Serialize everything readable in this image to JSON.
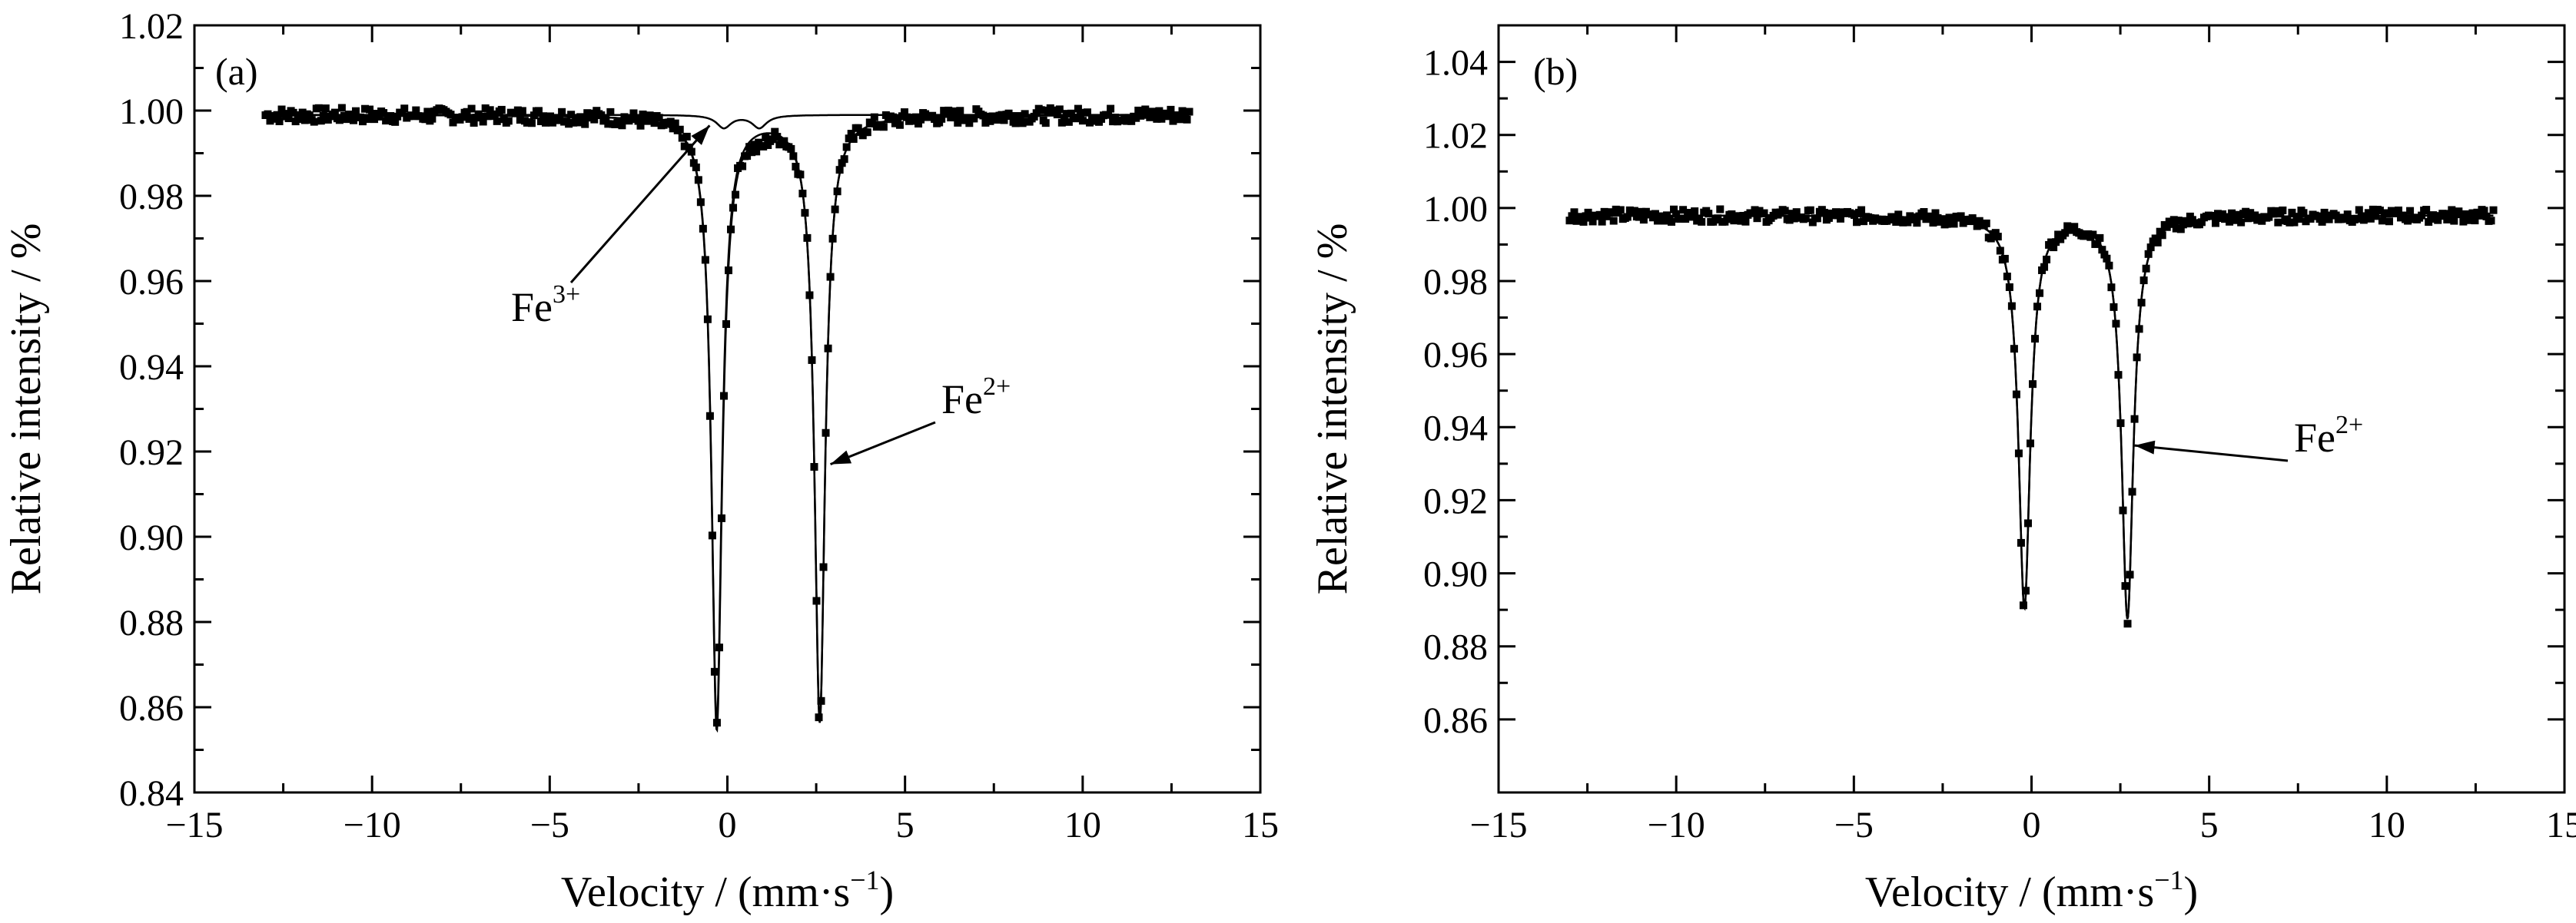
{
  "chart_data": [
    {
      "type": "scatter",
      "panel_label": "(a)",
      "xlabel": "Velocity / (mm·s",
      "xlabel_sup": "−1",
      "xlabel_end": ")",
      "ylabel": "Relative intensity / %",
      "xlim": [
        -15,
        15
      ],
      "ylim": [
        0.84,
        1.02
      ],
      "xticks": [
        -15,
        -10,
        -5,
        0,
        5,
        10,
        15
      ],
      "xtick_labels": [
        "−15",
        "−10",
        "−5",
        "0",
        "5",
        "10",
        "15"
      ],
      "yticks": [
        0.84,
        0.86,
        0.88,
        0.9,
        0.92,
        0.94,
        0.96,
        0.98,
        1.0,
        1.02
      ],
      "ytick_labels": [
        "0.84",
        "0.86",
        "0.88",
        "0.90",
        "0.92",
        "0.94",
        "0.96",
        "0.98",
        "1.00",
        "1.02"
      ],
      "x_range_data": [
        -13,
        13
      ],
      "baseline": 0.999,
      "components": [
        {
          "name": "Fe2+",
          "peaks": [
            {
              "center": -0.3,
              "depth": 0.142,
              "hwhm": 0.18
            },
            {
              "center": 2.6,
              "depth": 0.142,
              "hwhm": 0.18
            }
          ]
        },
        {
          "name": "Fe3+",
          "peaks": [
            {
              "center": -0.1,
              "depth": 0.003,
              "hwhm": 0.25
            },
            {
              "center": 0.9,
              "depth": 0.003,
              "hwhm": 0.25
            }
          ]
        }
      ],
      "annotations": [
        {
          "base": "Fe",
          "sup": "3+",
          "target": {
            "x": -0.5,
            "y": 0.9965
          }
        },
        {
          "base": "Fe",
          "sup": "2+",
          "target": {
            "x": 2.9,
            "y": 0.917
          }
        }
      ]
    },
    {
      "type": "scatter",
      "panel_label": "(b)",
      "xlabel": "Velocity / (mm·s",
      "xlabel_sup": "−1",
      "xlabel_end": ")",
      "ylabel": "Relative intensity / %",
      "xlim": [
        -15,
        15
      ],
      "ylim": [
        0.84,
        1.05
      ],
      "xticks": [
        -15,
        -10,
        -5,
        0,
        5,
        10,
        15
      ],
      "xtick_labels": [
        "−15",
        "−10",
        "−5",
        "0",
        "5",
        "10",
        "15"
      ],
      "yticks": [
        0.86,
        0.88,
        0.9,
        0.92,
        0.94,
        0.96,
        0.98,
        1.0,
        1.02,
        1.04
      ],
      "ytick_labels": [
        "0.86",
        "0.88",
        "0.90",
        "0.92",
        "0.94",
        "0.96",
        "0.98",
        "1.00",
        "1.02",
        "1.04"
      ],
      "x_range_data": [
        -13,
        13
      ],
      "baseline": 0.998,
      "components": [
        {
          "name": "Fe2+",
          "peaks": [
            {
              "center": -0.2,
              "depth": 0.107,
              "hwhm": 0.2
            },
            {
              "center": 2.7,
              "depth": 0.11,
              "hwhm": 0.2
            }
          ]
        }
      ],
      "annotations": [
        {
          "base": "Fe",
          "sup": "2+",
          "target": {
            "x": 2.9,
            "y": 0.935
          }
        }
      ]
    }
  ]
}
